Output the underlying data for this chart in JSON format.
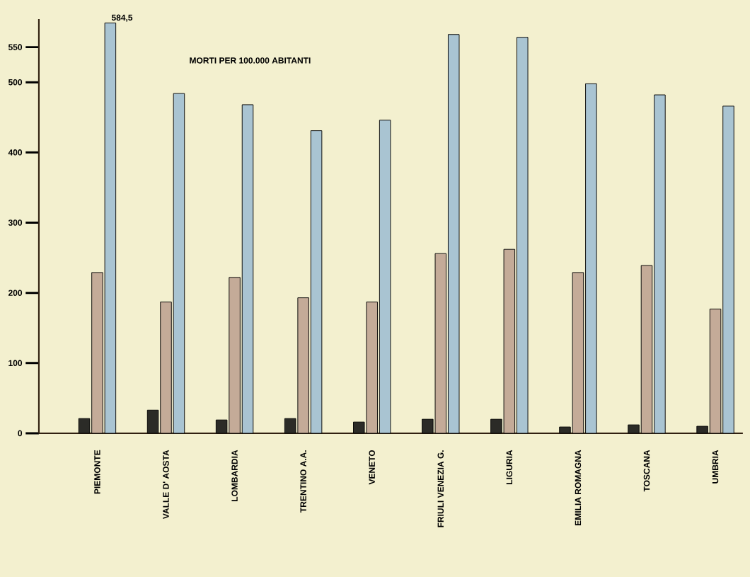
{
  "chart_data": {
    "type": "bar",
    "title": "MORTI PER 100.000 ABITANTI",
    "categories": [
      "PIEMONTE",
      "VALLE D' AOSTA",
      "LOMBARDIA",
      "TRENTINO A.A.",
      "VENETO",
      "FRIULI VENEZIA G.",
      "LIGURIA",
      "EMILIA ROMAGNA",
      "TOSCANA",
      "UMBRIA"
    ],
    "series": [
      {
        "color": "#2b2b27",
        "values": [
          21,
          33,
          19,
          21,
          16,
          20,
          20,
          9,
          12,
          10
        ]
      },
      {
        "color": "#c4ab98",
        "values": [
          229,
          187,
          222,
          193,
          187,
          256,
          262,
          229,
          239,
          177
        ]
      },
      {
        "color": "#a9c4d2",
        "values": [
          584.5,
          484,
          468,
          431,
          446,
          568,
          564,
          498,
          482,
          466
        ],
        "value_labels": [
          "584,5",
          null,
          null,
          null,
          null,
          null,
          null,
          null,
          null,
          null
        ]
      }
    ],
    "ylim": [
      0,
      590
    ],
    "yticks": [
      0,
      100,
      200,
      300,
      400,
      500,
      550
    ]
  }
}
